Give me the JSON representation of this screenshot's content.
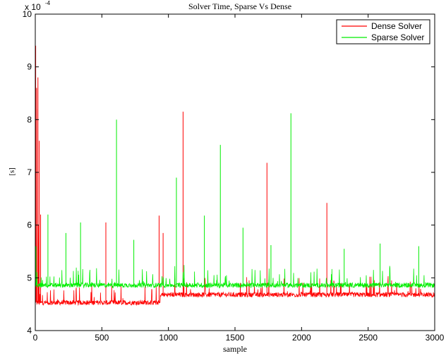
{
  "chart_data": {
    "type": "line",
    "title": "Solver Time, Sparse Vs Dense",
    "xlabel": "sample",
    "ylabel": "[s]",
    "exponent_label": "x 10",
    "exponent_power": "-4",
    "xlim": [
      0,
      3000
    ],
    "ylim": [
      4,
      10
    ],
    "x_ticks": [
      "0",
      "500",
      "1000",
      "1500",
      "2000",
      "2500",
      "3000"
    ],
    "y_ticks": [
      "4",
      "5",
      "6",
      "7",
      "8",
      "9",
      "10"
    ],
    "grid": false,
    "legend_position": "top-right",
    "series": [
      {
        "name": "Dense Solver",
        "color": "#ff0000",
        "base_segments": [
          {
            "from": 0,
            "to": 940,
            "base": 4.53
          },
          {
            "from": 940,
            "to": 3000,
            "base": 4.68
          }
        ],
        "peaks": [
          {
            "x": 3,
            "y": 9.4
          },
          {
            "x": 10,
            "y": 8.6
          },
          {
            "x": 20,
            "y": 8.8
          },
          {
            "x": 30,
            "y": 7.6
          },
          {
            "x": 40,
            "y": 6.2
          },
          {
            "x": 530,
            "y": 6.05
          },
          {
            "x": 930,
            "y": 6.18
          },
          {
            "x": 960,
            "y": 5.85
          },
          {
            "x": 1110,
            "y": 8.15
          },
          {
            "x": 1740,
            "y": 7.18
          },
          {
            "x": 2190,
            "y": 6.42
          }
        ]
      },
      {
        "name": "Sparse Solver",
        "color": "#00ee00",
        "base_segments": [
          {
            "from": 0,
            "to": 3000,
            "base": 4.86
          }
        ],
        "peaks": [
          {
            "x": 5,
            "y": 5.6
          },
          {
            "x": 95,
            "y": 6.2
          },
          {
            "x": 230,
            "y": 5.85
          },
          {
            "x": 340,
            "y": 6.05
          },
          {
            "x": 610,
            "y": 8.0
          },
          {
            "x": 740,
            "y": 5.72
          },
          {
            "x": 1060,
            "y": 6.9
          },
          {
            "x": 1270,
            "y": 6.18
          },
          {
            "x": 1390,
            "y": 7.52
          },
          {
            "x": 1560,
            "y": 5.95
          },
          {
            "x": 1770,
            "y": 5.62
          },
          {
            "x": 1920,
            "y": 8.12
          },
          {
            "x": 2320,
            "y": 5.55
          },
          {
            "x": 2590,
            "y": 5.65
          },
          {
            "x": 2880,
            "y": 5.6
          }
        ]
      }
    ]
  }
}
